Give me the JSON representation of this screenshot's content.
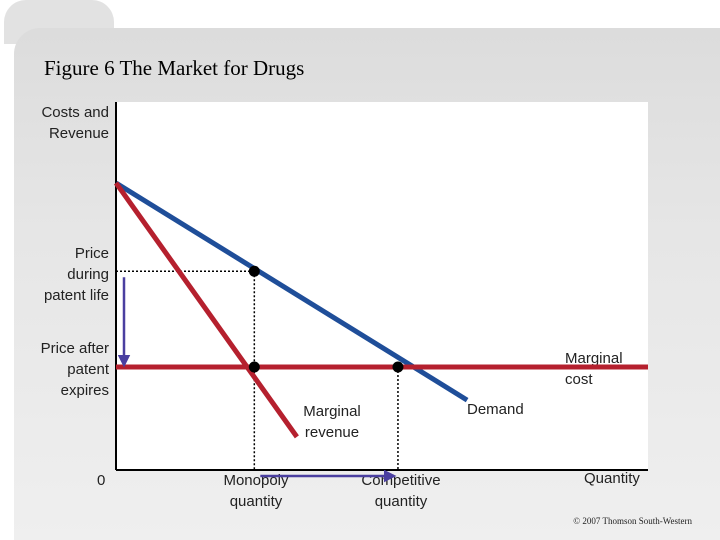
{
  "title": "Figure 6 The Market for Drugs",
  "copyright": "© 2007 Thomson South-Western",
  "chart_data": {
    "type": "line",
    "title": "Figure 6 The Market for Drugs",
    "ylabel": "Costs and Revenue",
    "xlabel": "Quantity",
    "origin_label": "0",
    "xlim": [
      0,
      10
    ],
    "ylim": [
      0,
      10
    ],
    "series": [
      {
        "name": "Demand",
        "color": "#1f4e99",
        "points": [
          [
            0,
            7.8
          ],
          [
            6.6,
            1.9
          ]
        ]
      },
      {
        "name": "Marginal revenue",
        "color": "#b5202e",
        "points": [
          [
            0,
            7.8
          ],
          [
            3.4,
            0.9
          ]
        ]
      },
      {
        "name": "Marginal cost",
        "color": "#b5202e",
        "points": [
          [
            0,
            2.8
          ],
          [
            10,
            2.8
          ]
        ]
      }
    ],
    "price_labels": [
      {
        "name": "Price during patent life",
        "lines": [
          "Price",
          "during",
          "patent life"
        ],
        "y": 5.4
      },
      {
        "name": "Price after patent expires",
        "lines": [
          "Price after",
          "patent",
          "expires"
        ],
        "y": 2.8
      }
    ],
    "quantity_labels": [
      {
        "name": "Monopoly quantity",
        "lines": [
          "Monopoly",
          "quantity"
        ],
        "x": 2.6
      },
      {
        "name": "Competitive quantity",
        "lines": [
          "Competitive",
          "quantity"
        ],
        "x": 5.3
      }
    ],
    "points": [
      {
        "name": "monopoly-point",
        "x": 2.6,
        "y": 5.4
      },
      {
        "name": "monopoly-mr-mc-point",
        "x": 2.6,
        "y": 2.8
      },
      {
        "name": "competitive-point",
        "x": 5.3,
        "y": 2.8
      }
    ],
    "curve_labels": {
      "marginal_cost": [
        "Marginal",
        "cost"
      ],
      "marginal_revenue": [
        "Marginal",
        "revenue"
      ],
      "demand": "Demand"
    },
    "ylabel_lines": [
      "Costs and",
      "Revenue"
    ],
    "arrows": [
      {
        "name": "price-drop-arrow",
        "axis": "y",
        "from": 5.4,
        "to": 2.8,
        "color": "#4a3fa0"
      },
      {
        "name": "quantity-rise-arrow",
        "axis": "x",
        "from": 2.6,
        "to": 5.3,
        "color": "#4a3fa0"
      }
    ]
  }
}
